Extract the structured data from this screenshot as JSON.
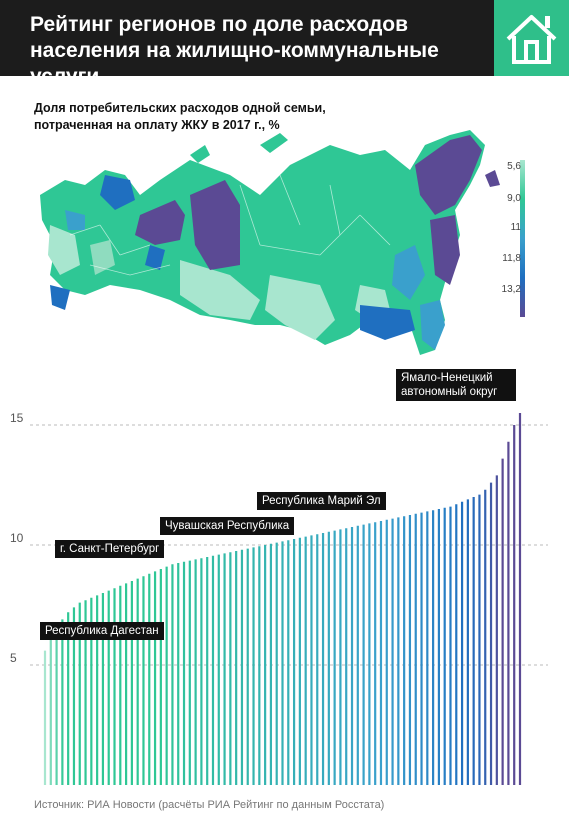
{
  "header": {
    "title": "Рейтинг регионов по доле расходов населения на жилищно-коммунальные услуги",
    "icon": "house-icon"
  },
  "subtitle": "Доля потребительских расходов одной семьи, потраченная на оплату ЖКУ в 2017 г., %",
  "legend": {
    "labels": [
      "5,6",
      "9,0",
      "11",
      "11,8",
      "13,2"
    ],
    "colors": [
      "#a8e6cf",
      "#2fc795",
      "#3aa0cc",
      "#1f6fc0",
      "#5b4a94"
    ]
  },
  "map": {
    "icon": "russia-regions-map"
  },
  "callouts": [
    {
      "text": "Республика Дагестан"
    },
    {
      "text": "г. Санкт-Петербург"
    },
    {
      "text": "Чувашская Республика"
    },
    {
      "text": "Республика Марий Эл"
    },
    {
      "text": "Ямало-Ненецкий автономный округ"
    }
  ],
  "chart_data": {
    "type": "bar",
    "title": "Доля потребительских расходов одной семьи, потраченная на оплату ЖКУ в 2017 г., %",
    "ylim": [
      0,
      16
    ],
    "yticks": [
      5,
      10,
      15
    ],
    "ytick_labels": [
      "5",
      "10",
      "15"
    ],
    "grid": "dashed at 5, 10, 15",
    "values": [
      5.6,
      6.1,
      6.5,
      6.9,
      7.2,
      7.4,
      7.6,
      7.7,
      7.8,
      7.9,
      8.0,
      8.1,
      8.2,
      8.3,
      8.4,
      8.5,
      8.6,
      8.7,
      8.8,
      8.9,
      9.0,
      9.1,
      9.2,
      9.25,
      9.3,
      9.35,
      9.4,
      9.45,
      9.5,
      9.55,
      9.6,
      9.65,
      9.7,
      9.75,
      9.8,
      9.85,
      9.9,
      9.95,
      10.0,
      10.05,
      10.1,
      10.15,
      10.2,
      10.25,
      10.3,
      10.35,
      10.4,
      10.45,
      10.5,
      10.55,
      10.6,
      10.65,
      10.7,
      10.75,
      10.8,
      10.85,
      10.9,
      10.95,
      11.0,
      11.05,
      11.1,
      11.15,
      11.2,
      11.25,
      11.3,
      11.35,
      11.4,
      11.45,
      11.5,
      11.55,
      11.6,
      11.7,
      11.8,
      11.9,
      12.0,
      12.1,
      12.3,
      12.6,
      12.9,
      13.6,
      14.3,
      15.0,
      15.5
    ],
    "labeled_bars": [
      {
        "index": 0,
        "label": "Республика Дагестан"
      },
      {
        "index": 32,
        "label": "г. Санкт-Петербург"
      },
      {
        "index": 55,
        "label": "Чувашская Республика"
      },
      {
        "index": 67,
        "label": "Республика Марий Эл"
      },
      {
        "index": 82,
        "label": "Ямало-Ненецкий автономный округ"
      }
    ]
  },
  "source": "Источник: РИА Новости (расчёты РИА Рейтинг по данным Росстата)"
}
